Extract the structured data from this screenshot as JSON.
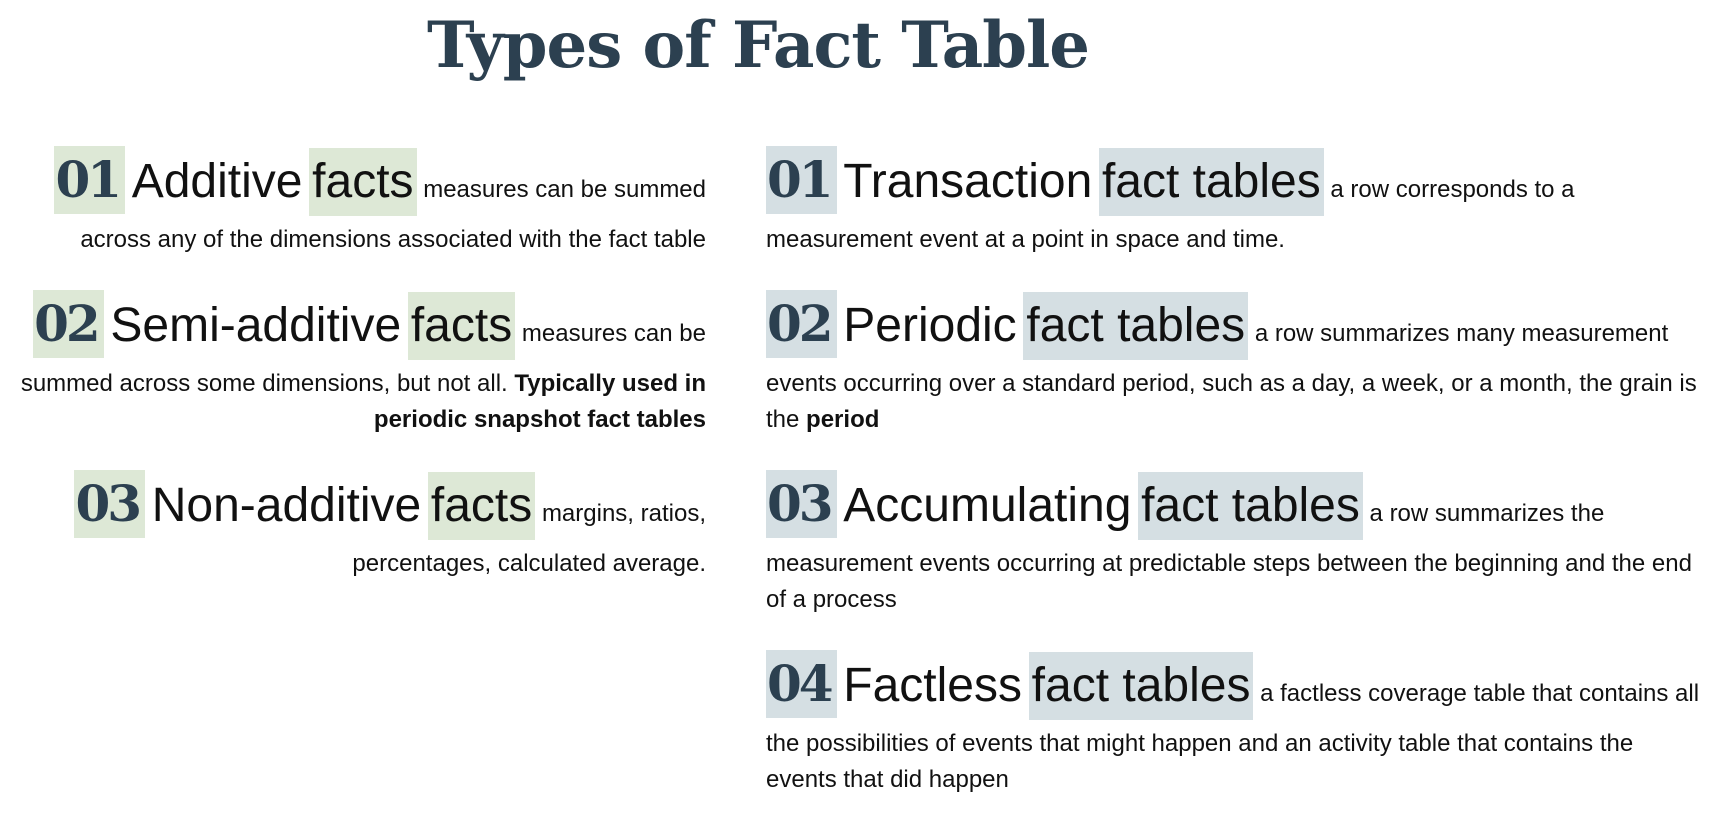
{
  "title": "Types of Fact Table",
  "facts": [
    {
      "number": "01",
      "term": "Additive",
      "highlight": "facts",
      "description": "measures can be summed across any of the dimensions associated with the fact table",
      "note": ""
    },
    {
      "number": "02",
      "term": "Semi-additive",
      "highlight": "facts",
      "description": "measures can be summed across some dimensions, but not all.",
      "note": "Typically used in periodic snapshot fact tables"
    },
    {
      "number": "03",
      "term": "Non-additive",
      "highlight": "facts",
      "description": "margins, ratios, percentages, calculated average.",
      "note": ""
    }
  ],
  "tables": [
    {
      "number": "01",
      "term": "Transaction",
      "highlight": "fact tables",
      "description": "a row corresponds to a measurement event at a point in space and time.",
      "emphasis": ""
    },
    {
      "number": "02",
      "term": "Periodic",
      "highlight": "fact tables",
      "description": "a row summarizes many measurement events occurring over a standard period, such as a day, a week, or a month, the grain is the",
      "emphasis": "period"
    },
    {
      "number": "03",
      "term": "Accumulating",
      "highlight": "fact tables",
      "description": "a row summarizes the measurement events occurring at predictable steps between the beginning and the end of a process",
      "emphasis": ""
    },
    {
      "number": "04",
      "term": "Factless",
      "highlight": "fact tables",
      "description": "a factless coverage table that contains all the possibilities of events that might happen and an activity table that contains the events that did happen",
      "emphasis": ""
    }
  ],
  "colors": {
    "title": "#2c4050",
    "facts_highlight": "#dde8d6",
    "tables_highlight": "#d5dfe3"
  }
}
